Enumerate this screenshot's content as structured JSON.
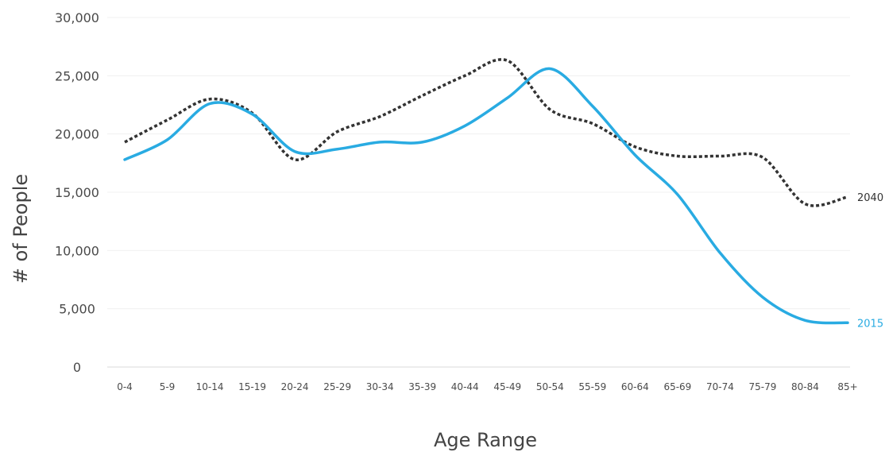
{
  "chart_data": {
    "type": "line",
    "title": "",
    "xlabel": "Age Range",
    "ylabel": "# of People",
    "categories": [
      "0-4",
      "5-9",
      "10-14",
      "15-19",
      "20-24",
      "25-29",
      "30-34",
      "35-39",
      "40-44",
      "45-49",
      "50-54",
      "55-59",
      "60-64",
      "65-69",
      "70-74",
      "75-79",
      "80-84",
      "85+"
    ],
    "ylim": [
      0,
      30000
    ],
    "yticks": [
      0,
      5000,
      10000,
      15000,
      20000,
      25000,
      30000
    ],
    "ytick_labels": [
      "0",
      "5,000",
      "10,000",
      "15,000",
      "20,000",
      "25,000",
      "30,000"
    ],
    "grid": true,
    "legend": "inline-end-labels",
    "series": [
      {
        "name": "2040",
        "style": "dotted",
        "color": "#333333",
        "values": [
          19300,
          21200,
          23000,
          21800,
          17800,
          20200,
          21500,
          23300,
          25000,
          26300,
          22100,
          20900,
          18900,
          18100,
          18100,
          18000,
          14000,
          14600
        ]
      },
      {
        "name": "2015",
        "style": "solid",
        "color": "#29abe2",
        "values": [
          17800,
          19500,
          22600,
          21700,
          18500,
          18700,
          19300,
          19300,
          20700,
          23100,
          25600,
          22400,
          18200,
          14800,
          9800,
          6000,
          4000,
          3800
        ]
      }
    ]
  }
}
